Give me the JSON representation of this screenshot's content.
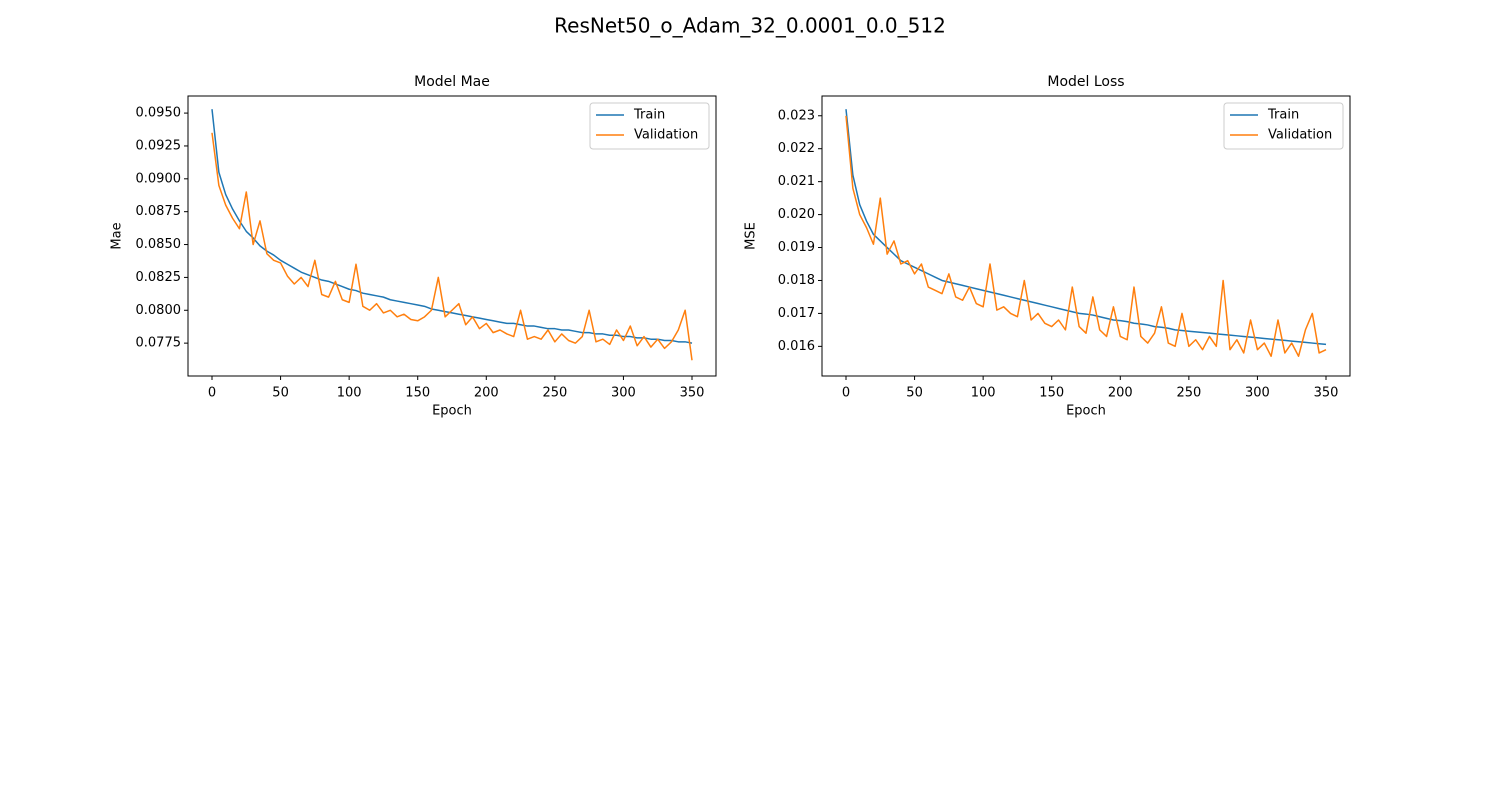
{
  "title": "ResNet50_o_Adam_32_0.0001_0.0_512",
  "chart_data": [
    {
      "type": "line",
      "title": "Model Mae",
      "xlabel": "Epoch",
      "ylabel": "Mae",
      "legend": "upper right",
      "grid": false,
      "x": [
        0,
        5,
        10,
        15,
        20,
        25,
        30,
        35,
        40,
        45,
        50,
        55,
        60,
        65,
        70,
        75,
        80,
        85,
        90,
        95,
        100,
        105,
        110,
        115,
        120,
        125,
        130,
        135,
        140,
        145,
        150,
        155,
        160,
        165,
        170,
        175,
        180,
        185,
        190,
        195,
        200,
        205,
        210,
        215,
        220,
        225,
        230,
        235,
        240,
        245,
        250,
        255,
        260,
        265,
        270,
        275,
        280,
        285,
        290,
        295,
        300,
        305,
        310,
        315,
        320,
        325,
        330,
        335,
        340,
        345,
        350
      ],
      "xlim": [
        -17.5,
        367.5
      ],
      "xticks": [
        0,
        50,
        100,
        150,
        200,
        250,
        300,
        350
      ],
      "ylim": [
        0.075,
        0.0963
      ],
      "yticks": [
        0.0775,
        {
          "value": 0.08,
          "label": "0.0800"
        },
        0.0825,
        {
          "value": 0.085,
          "label": "0.0850"
        },
        0.0875,
        {
          "value": 0.09,
          "label": "0.0900"
        },
        0.0925,
        {
          "value": 0.095,
          "label": "0.0950"
        }
      ],
      "series": [
        {
          "name": "Train",
          "color": "#1f77b4",
          "values": [
            0.0953,
            0.0905,
            0.0888,
            0.0877,
            0.0868,
            0.086,
            0.0855,
            0.0849,
            0.0845,
            0.0842,
            0.0838,
            0.0835,
            0.0832,
            0.0829,
            0.0827,
            0.0825,
            0.0823,
            0.0822,
            0.082,
            0.0818,
            0.0816,
            0.0815,
            0.0813,
            0.0812,
            0.0811,
            0.081,
            0.0808,
            0.0807,
            0.0806,
            0.0805,
            0.0804,
            0.0803,
            0.0801,
            0.08,
            0.0799,
            0.0798,
            0.0797,
            0.0796,
            0.0795,
            0.0794,
            0.0793,
            0.0792,
            0.0791,
            0.079,
            0.079,
            0.0789,
            0.0788,
            0.0788,
            0.0787,
            0.0786,
            0.0786,
            0.0785,
            0.0785,
            0.0784,
            0.0783,
            0.0783,
            0.0782,
            0.0782,
            0.0781,
            0.0781,
            0.078,
            0.078,
            0.0779,
            0.0779,
            0.0778,
            0.0778,
            0.0777,
            0.0777,
            0.0776,
            0.0776,
            0.0775
          ]
        },
        {
          "name": "Validation",
          "color": "#ff7f0e",
          "values": [
            0.0935,
            0.0895,
            0.088,
            0.087,
            0.0862,
            0.089,
            0.085,
            0.0868,
            0.0843,
            0.0838,
            0.0836,
            0.0826,
            0.082,
            0.0825,
            0.0818,
            0.0838,
            0.0812,
            0.081,
            0.0822,
            0.0808,
            0.0806,
            0.0835,
            0.0803,
            0.08,
            0.0805,
            0.0798,
            0.08,
            0.0795,
            0.0797,
            0.0793,
            0.0792,
            0.0795,
            0.08,
            0.0825,
            0.0795,
            0.08,
            0.0805,
            0.0789,
            0.0795,
            0.0786,
            0.079,
            0.0783,
            0.0785,
            0.0782,
            0.078,
            0.08,
            0.0778,
            0.078,
            0.0778,
            0.0785,
            0.0776,
            0.0782,
            0.0777,
            0.0775,
            0.078,
            0.08,
            0.0776,
            0.0778,
            0.0774,
            0.0785,
            0.0777,
            0.0788,
            0.0773,
            0.078,
            0.0772,
            0.0778,
            0.0771,
            0.0776,
            0.0785,
            0.08,
            0.0762
          ]
        }
      ]
    },
    {
      "type": "line",
      "title": "Model Loss",
      "xlabel": "Epoch",
      "ylabel": "MSE",
      "legend": "upper right",
      "grid": false,
      "x": [
        0,
        5,
        10,
        15,
        20,
        25,
        30,
        35,
        40,
        45,
        50,
        55,
        60,
        65,
        70,
        75,
        80,
        85,
        90,
        95,
        100,
        105,
        110,
        115,
        120,
        125,
        130,
        135,
        140,
        145,
        150,
        155,
        160,
        165,
        170,
        175,
        180,
        185,
        190,
        195,
        200,
        205,
        210,
        215,
        220,
        225,
        230,
        235,
        240,
        245,
        250,
        255,
        260,
        265,
        270,
        275,
        280,
        285,
        290,
        295,
        300,
        305,
        310,
        315,
        320,
        325,
        330,
        335,
        340,
        345,
        350
      ],
      "xlim": [
        -17.5,
        367.5
      ],
      "xticks": [
        0,
        50,
        100,
        150,
        200,
        250,
        300,
        350
      ],
      "ylim": [
        0.0151,
        0.0236
      ],
      "yticks": [
        0.016,
        0.017,
        0.018,
        0.019,
        {
          "value": 0.02,
          "label": "0.020"
        },
        0.021,
        0.022,
        0.023
      ],
      "series": [
        {
          "name": "Train",
          "color": "#1f77b4",
          "values": [
            0.0232,
            0.0212,
            0.0203,
            0.0198,
            0.0194,
            0.0192,
            0.019,
            0.0188,
            0.0186,
            0.0185,
            0.0184,
            0.0183,
            0.0182,
            0.0181,
            0.018,
            0.01795,
            0.0179,
            0.01785,
            0.0178,
            0.01775,
            0.0177,
            0.01765,
            0.0176,
            0.01755,
            0.0175,
            0.01745,
            0.0174,
            0.01735,
            0.0173,
            0.01725,
            0.0172,
            0.01715,
            0.0171,
            0.01705,
            0.017,
            0.01698,
            0.01695,
            0.0169,
            0.01685,
            0.0168,
            0.01678,
            0.01675,
            0.0167,
            0.01668,
            0.01665,
            0.0166,
            0.01658,
            0.01655,
            0.0165,
            0.01648,
            0.01646,
            0.01644,
            0.01642,
            0.0164,
            0.01638,
            0.01636,
            0.01634,
            0.01632,
            0.0163,
            0.01628,
            0.01626,
            0.01624,
            0.01622,
            0.0162,
            0.01618,
            0.01616,
            0.01614,
            0.01612,
            0.0161,
            0.01608,
            0.01606
          ]
        },
        {
          "name": "Validation",
          "color": "#ff7f0e",
          "values": [
            0.023,
            0.0208,
            0.02,
            0.0196,
            0.0191,
            0.0205,
            0.0188,
            0.0192,
            0.0185,
            0.0186,
            0.0182,
            0.0185,
            0.0178,
            0.0177,
            0.0176,
            0.0182,
            0.0175,
            0.0174,
            0.0178,
            0.0173,
            0.0172,
            0.0185,
            0.0171,
            0.0172,
            0.017,
            0.0169,
            0.018,
            0.0168,
            0.017,
            0.0167,
            0.0166,
            0.0168,
            0.0165,
            0.0178,
            0.0166,
            0.0164,
            0.0175,
            0.0165,
            0.0163,
            0.0172,
            0.0163,
            0.0162,
            0.0178,
            0.0163,
            0.0161,
            0.0164,
            0.0172,
            0.0161,
            0.016,
            0.017,
            0.016,
            0.0162,
            0.0159,
            0.0163,
            0.016,
            0.018,
            0.0159,
            0.0162,
            0.0158,
            0.0168,
            0.0159,
            0.0161,
            0.0157,
            0.0168,
            0.0158,
            0.0161,
            0.0157,
            0.0165,
            0.017,
            0.0158,
            0.0159
          ]
        }
      ]
    }
  ]
}
